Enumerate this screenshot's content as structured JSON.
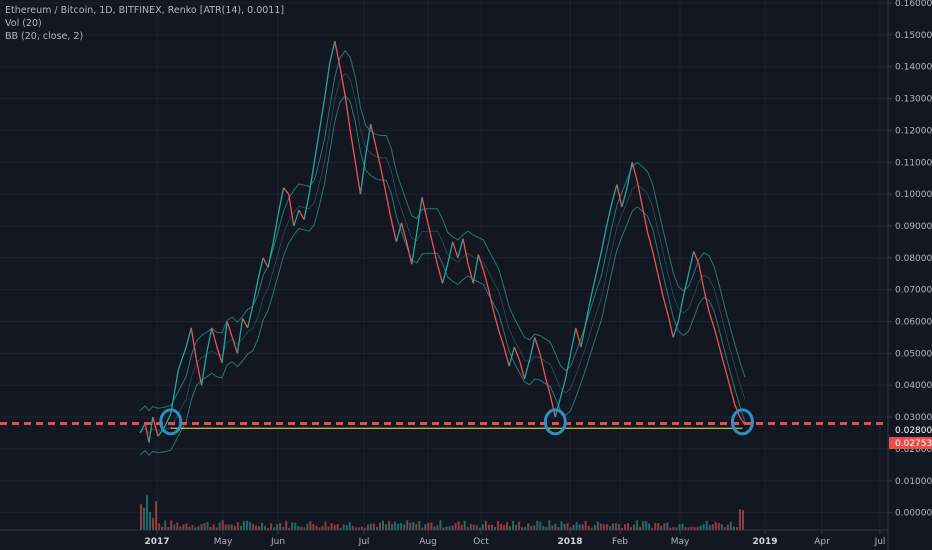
{
  "legend": {
    "symbol_line": "Ethereum / Bitcoin, 1D, BITFINEX, Renko [ATR(14), 0.0011]",
    "vol_line": "Vol (20)",
    "bb_line": "BB (20, close, 2)"
  },
  "colors": {
    "background": "#131722",
    "grid": "#1e2230",
    "axis_text": "#b2b5be",
    "renko_up": "#26a69a",
    "renko_down": "#ef5350",
    "bb_band": "#2a8f8a",
    "bb_basis": "#2a8f8a",
    "support_dashed": "#e84c4c",
    "horizontal_yellow": "#e8e84c",
    "circle_marker": "#2e8fc5",
    "vol_up": "#26a69a",
    "vol_down": "#ef5350"
  },
  "price_labels": {
    "support": "0.028000",
    "current": "0.027534"
  },
  "chart_data": {
    "type": "line",
    "title": "Ethereum / Bitcoin, 1D, BITFINEX, Renko [ATR(14), 0.0011]",
    "ylim": [
      -0.002,
      0.16
    ],
    "y_ticks": [
      "0.160000",
      "0.150000",
      "0.140000",
      "0.130000",
      "0.120000",
      "0.110000",
      "0.100000",
      "0.090000",
      "0.080000",
      "0.070000",
      "0.060000",
      "0.050000",
      "0.040000",
      "0.030000",
      "0.020000",
      "0.010000",
      "0.000000"
    ],
    "x_ticks": [
      {
        "label": "2017",
        "bold": true
      },
      {
        "label": "May",
        "bold": false
      },
      {
        "label": "Jun",
        "bold": false
      },
      {
        "label": "Jul",
        "bold": false
      },
      {
        "label": "Aug",
        "bold": false
      },
      {
        "label": "Oct",
        "bold": false
      },
      {
        "label": "2018",
        "bold": true
      },
      {
        "label": "Feb",
        "bold": false
      },
      {
        "label": "May",
        "bold": false
      },
      {
        "label": "2019",
        "bold": true
      },
      {
        "label": "Apr",
        "bold": false
      },
      {
        "label": "Jul",
        "bold": false
      }
    ],
    "renko_path": [
      [
        0,
        0.025
      ],
      [
        4,
        0.028
      ],
      [
        7,
        0.022
      ],
      [
        10,
        0.03
      ],
      [
        14,
        0.024
      ],
      [
        18,
        0.026
      ],
      [
        24,
        0.031
      ],
      [
        30,
        0.045
      ],
      [
        36,
        0.052
      ],
      [
        40,
        0.058
      ],
      [
        44,
        0.048
      ],
      [
        48,
        0.04
      ],
      [
        52,
        0.05
      ],
      [
        56,
        0.058
      ],
      [
        60,
        0.052
      ],
      [
        64,
        0.047
      ],
      [
        68,
        0.06
      ],
      [
        72,
        0.055
      ],
      [
        76,
        0.05
      ],
      [
        80,
        0.061
      ],
      [
        84,
        0.058
      ],
      [
        88,
        0.065
      ],
      [
        92,
        0.073
      ],
      [
        96,
        0.08
      ],
      [
        100,
        0.077
      ],
      [
        104,
        0.085
      ],
      [
        108,
        0.094
      ],
      [
        112,
        0.102
      ],
      [
        116,
        0.1
      ],
      [
        120,
        0.09
      ],
      [
        124,
        0.095
      ],
      [
        128,
        0.092
      ],
      [
        132,
        0.1
      ],
      [
        136,
        0.11
      ],
      [
        140,
        0.12
      ],
      [
        144,
        0.13
      ],
      [
        148,
        0.141
      ],
      [
        152,
        0.148
      ],
      [
        156,
        0.14
      ],
      [
        160,
        0.131
      ],
      [
        164,
        0.12
      ],
      [
        168,
        0.11
      ],
      [
        172,
        0.1
      ],
      [
        176,
        0.112
      ],
      [
        180,
        0.122
      ],
      [
        184,
        0.115
      ],
      [
        188,
        0.108
      ],
      [
        192,
        0.1
      ],
      [
        196,
        0.092
      ],
      [
        200,
        0.085
      ],
      [
        204,
        0.091
      ],
      [
        208,
        0.085
      ],
      [
        212,
        0.078
      ],
      [
        216,
        0.088
      ],
      [
        220,
        0.099
      ],
      [
        224,
        0.092
      ],
      [
        228,
        0.085
      ],
      [
        232,
        0.078
      ],
      [
        236,
        0.072
      ],
      [
        240,
        0.078
      ],
      [
        244,
        0.085
      ],
      [
        248,
        0.08
      ],
      [
        252,
        0.086
      ],
      [
        256,
        0.078
      ],
      [
        260,
        0.072
      ],
      [
        264,
        0.081
      ],
      [
        268,
        0.076
      ],
      [
        272,
        0.07
      ],
      [
        276,
        0.063
      ],
      [
        280,
        0.057
      ],
      [
        284,
        0.052
      ],
      [
        288,
        0.046
      ],
      [
        292,
        0.052
      ],
      [
        296,
        0.048
      ],
      [
        300,
        0.042
      ],
      [
        304,
        0.048
      ],
      [
        308,
        0.055
      ],
      [
        312,
        0.05
      ],
      [
        316,
        0.043
      ],
      [
        320,
        0.037
      ],
      [
        324,
        0.03
      ],
      [
        328,
        0.036
      ],
      [
        332,
        0.042
      ],
      [
        336,
        0.05
      ],
      [
        340,
        0.058
      ],
      [
        344,
        0.052
      ],
      [
        348,
        0.06
      ],
      [
        352,
        0.068
      ],
      [
        356,
        0.075
      ],
      [
        360,
        0.082
      ],
      [
        364,
        0.09
      ],
      [
        368,
        0.097
      ],
      [
        372,
        0.103
      ],
      [
        376,
        0.096
      ],
      [
        380,
        0.102
      ],
      [
        384,
        0.11
      ],
      [
        388,
        0.104
      ],
      [
        392,
        0.096
      ],
      [
        396,
        0.088
      ],
      [
        400,
        0.082
      ],
      [
        404,
        0.075
      ],
      [
        408,
        0.068
      ],
      [
        412,
        0.062
      ],
      [
        416,
        0.055
      ],
      [
        420,
        0.06
      ],
      [
        424,
        0.068
      ],
      [
        428,
        0.075
      ],
      [
        432,
        0.082
      ],
      [
        436,
        0.078
      ],
      [
        440,
        0.07
      ],
      [
        444,
        0.063
      ],
      [
        448,
        0.058
      ],
      [
        452,
        0.052
      ],
      [
        456,
        0.046
      ],
      [
        460,
        0.04
      ],
      [
        464,
        0.034
      ],
      [
        468,
        0.03
      ],
      [
        472,
        0.0275
      ]
    ],
    "support_level": 0.028,
    "yellow_level": 0.0265,
    "markers": [
      {
        "x": 24,
        "y": 0.0285
      },
      {
        "x": 324,
        "y": 0.0285
      },
      {
        "x": 470,
        "y": 0.0285
      }
    ]
  }
}
